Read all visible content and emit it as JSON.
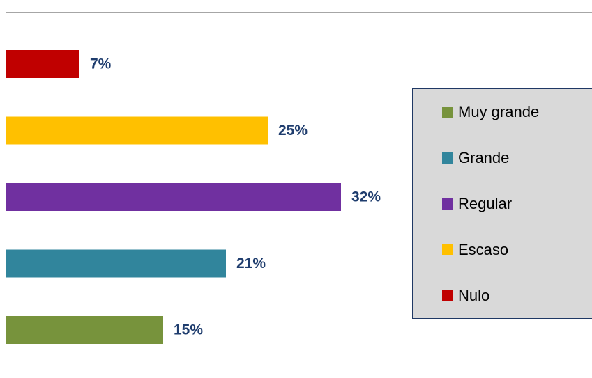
{
  "chart_data": {
    "type": "bar",
    "orientation": "horizontal",
    "categories": [
      "Muy grande",
      "Grande",
      "Regular",
      "Escaso",
      "Nulo"
    ],
    "values": [
      15,
      21,
      32,
      25,
      7
    ],
    "value_labels": [
      "15%",
      "21%",
      "32%",
      "25%",
      "7%"
    ],
    "colors": [
      "#77933c",
      "#31859c",
      "#7030a0",
      "#ffc000",
      "#c00000"
    ],
    "xlim": [
      0,
      56
    ],
    "legend": "right"
  }
}
